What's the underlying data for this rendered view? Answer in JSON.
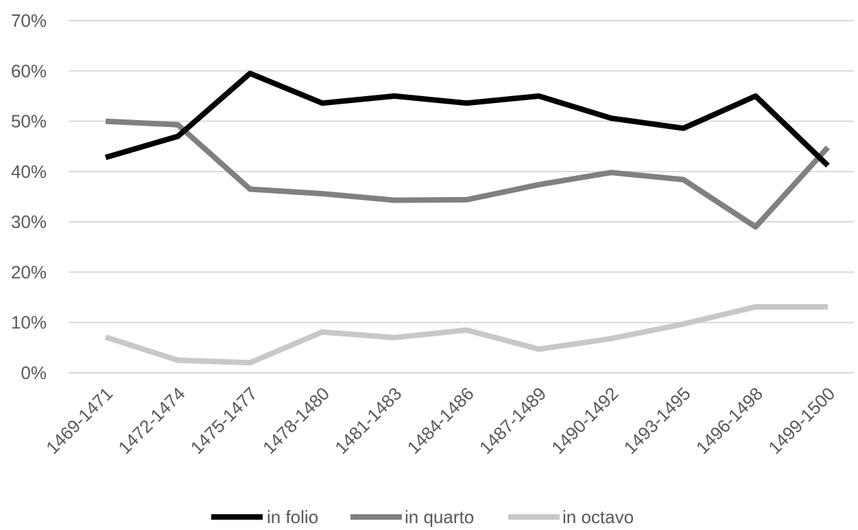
{
  "chart_data": {
    "type": "line",
    "title": "",
    "xlabel": "",
    "ylabel": "",
    "categories": [
      "1469-1471",
      "1472-1474",
      "1475-1477",
      "1478-1480",
      "1481-1483",
      "1484-1486",
      "1487-1489",
      "1490-1492",
      "1493-1495",
      "1496-1498",
      "1499-1500"
    ],
    "ylim": [
      0,
      70
    ],
    "yticks": [
      0,
      10,
      20,
      30,
      40,
      50,
      60,
      70
    ],
    "ytick_labels": [
      "0%",
      "10%",
      "20%",
      "30%",
      "40%",
      "50%",
      "60%",
      "70%"
    ],
    "grid": true,
    "legend_position": "bottom",
    "series": [
      {
        "name": "in folio",
        "color": "#000000",
        "values": [
          42.8,
          47.0,
          59.5,
          53.6,
          55.0,
          53.6,
          55.0,
          50.6,
          48.6,
          55.0,
          41.2
        ]
      },
      {
        "name": "in quarto",
        "color": "#808080",
        "values": [
          50.0,
          49.3,
          36.5,
          35.6,
          34.3,
          34.4,
          37.4,
          39.8,
          38.4,
          29.0,
          44.8
        ]
      },
      {
        "name": "in octavo",
        "color": "#c8c8c8",
        "values": [
          7.1,
          2.5,
          2.0,
          8.1,
          7.0,
          8.5,
          4.7,
          6.8,
          9.7,
          13.1,
          13.1
        ]
      }
    ]
  }
}
